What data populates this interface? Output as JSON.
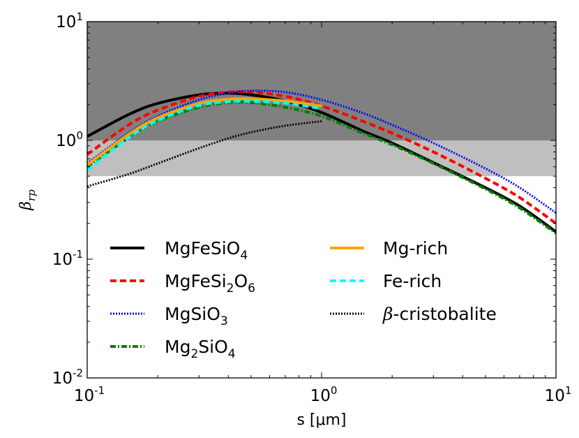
{
  "chart_data": {
    "type": "line",
    "xscale": "log",
    "yscale": "log",
    "xlim": [
      0.1,
      10
    ],
    "ylim": [
      0.01,
      10
    ],
    "xlabel": "s [μm]",
    "ylabel": "β_rp",
    "grid": false,
    "legend_placement": "lower-center",
    "x_ticks": [
      {
        "base": "10",
        "exp": "-1",
        "value": 0.1
      },
      {
        "base": "10",
        "exp": "0",
        "value": 1
      },
      {
        "base": "10",
        "exp": "1",
        "value": 10
      }
    ],
    "y_ticks": [
      {
        "base": "10",
        "exp": "-2",
        "value": 0.01
      },
      {
        "base": "10",
        "exp": "-1",
        "value": 0.1
      },
      {
        "base": "10",
        "exp": "0",
        "value": 1
      },
      {
        "base": "10",
        "exp": "1",
        "value": 10
      }
    ],
    "bands": [
      {
        "y_range": [
          1,
          10
        ],
        "color": "#808080"
      },
      {
        "y_range": [
          0.5,
          1
        ],
        "color": "#bfbfbf"
      }
    ],
    "series": [
      {
        "name": "MgFeSiO4",
        "label_parts": [
          [
            "MgFeSiO",
            "n"
          ],
          [
            "4",
            "sub"
          ]
        ],
        "color": "#000000",
        "style": "solid",
        "width": 4,
        "x": [
          0.1,
          0.15,
          0.2,
          0.3,
          0.4,
          0.5,
          0.7,
          1.0,
          1.5,
          2,
          3,
          5,
          7,
          10
        ],
        "y": [
          1.08,
          1.65,
          2.05,
          2.42,
          2.5,
          2.42,
          2.15,
          1.72,
          1.2,
          0.95,
          0.65,
          0.4,
          0.28,
          0.17
        ]
      },
      {
        "name": "MgFeSi2O6",
        "label_parts": [
          [
            "MgFeSi",
            "n"
          ],
          [
            "2",
            "sub"
          ],
          [
            "O",
            "n"
          ],
          [
            "6",
            "sub"
          ]
        ],
        "color": "#ff0000",
        "style": "dashed",
        "width": 4,
        "x": [
          0.1,
          0.15,
          0.2,
          0.3,
          0.4,
          0.5,
          0.7,
          1.0,
          1.5,
          2,
          3,
          5,
          7,
          10
        ],
        "y": [
          0.76,
          1.35,
          1.8,
          2.35,
          2.55,
          2.55,
          2.35,
          1.95,
          1.45,
          1.15,
          0.8,
          0.48,
          0.33,
          0.2
        ]
      },
      {
        "name": "MgSiO3",
        "label_parts": [
          [
            "MgSiO",
            "n"
          ],
          [
            "3",
            "sub"
          ]
        ],
        "color": "#0000ff",
        "style": "dotted",
        "width": 3,
        "x": [
          0.1,
          0.15,
          0.2,
          0.3,
          0.4,
          0.5,
          0.7,
          1.0,
          1.5,
          2,
          3,
          5,
          7,
          10
        ],
        "y": [
          0.64,
          1.15,
          1.6,
          2.2,
          2.5,
          2.62,
          2.55,
          2.2,
          1.7,
          1.35,
          0.95,
          0.58,
          0.4,
          0.245
        ]
      },
      {
        "name": "Mg2SiO4",
        "label_parts": [
          [
            "Mg",
            "n"
          ],
          [
            "2",
            "sub"
          ],
          [
            "SiO",
            "n"
          ],
          [
            "4",
            "sub"
          ]
        ],
        "color": "#008000",
        "style": "dashdot",
        "width": 4,
        "x": [
          0.1,
          0.15,
          0.2,
          0.3,
          0.4,
          0.5,
          0.7,
          1.0,
          1.5,
          2,
          3,
          5,
          7,
          10
        ],
        "y": [
          0.6,
          1.05,
          1.45,
          1.9,
          2.08,
          2.08,
          1.9,
          1.6,
          1.15,
          0.92,
          0.64,
          0.39,
          0.27,
          0.165
        ]
      },
      {
        "name": "Mg-rich",
        "label_parts": [
          [
            "Mg-rich",
            "n"
          ]
        ],
        "color": "#ffa500",
        "style": "solid",
        "width": 4,
        "x": [
          0.1,
          0.15,
          0.2,
          0.3,
          0.4,
          0.5,
          0.7,
          1.0
        ],
        "y": [
          0.62,
          1.12,
          1.55,
          2.05,
          2.22,
          2.24,
          2.15,
          1.95
        ]
      },
      {
        "name": "Fe-rich",
        "label_parts": [
          [
            "Fe-rich",
            "n"
          ]
        ],
        "color": "#00ffff",
        "style": "dashed",
        "width": 4,
        "x": [
          0.1,
          0.15,
          0.2,
          0.3,
          0.4,
          0.5,
          0.7,
          1.0
        ],
        "y": [
          0.56,
          1.05,
          1.47,
          1.97,
          2.12,
          2.14,
          2.06,
          1.85
        ]
      },
      {
        "name": "β-cristobalite",
        "label_parts": [
          [
            "β",
            "greek"
          ],
          [
            "-cristobalite",
            "n"
          ]
        ],
        "color": "#000000",
        "style": "dotted",
        "width": 3,
        "x": [
          0.1,
          0.15,
          0.2,
          0.3,
          0.4,
          0.5,
          0.7,
          1.0
        ],
        "y": [
          0.41,
          0.52,
          0.64,
          0.86,
          1.04,
          1.17,
          1.33,
          1.45
        ]
      }
    ]
  }
}
